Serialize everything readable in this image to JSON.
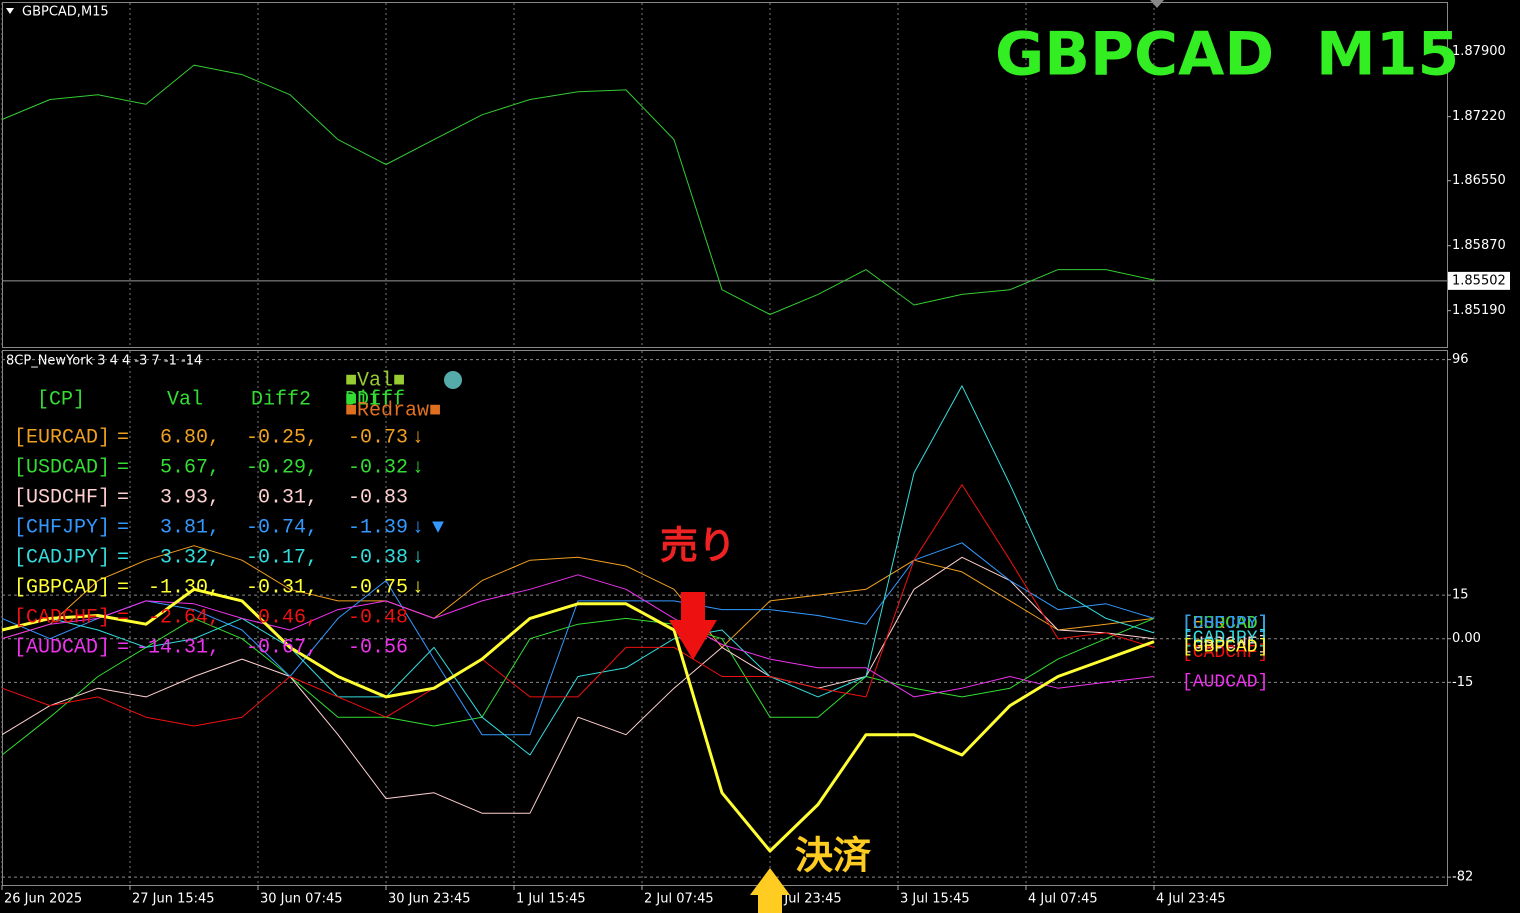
{
  "chart_data": [
    {
      "type": "line",
      "title": "GBPCAD,M15",
      "headline": "GBPCAD  M15",
      "x": [
        0,
        24,
        48,
        72,
        96,
        120,
        144,
        168,
        192,
        216,
        240,
        264,
        288,
        312,
        336,
        360,
        384,
        408,
        432,
        456,
        480,
        504,
        528,
        552,
        576
      ],
      "series": [
        {
          "name": "GBPCAD",
          "color": "#33cc33",
          "values": [
            1.8719,
            1.874,
            1.8745,
            1.8735,
            1.8776,
            1.8766,
            1.8745,
            1.8698,
            1.8672,
            1.8698,
            1.8724,
            1.874,
            1.8748,
            1.875,
            1.8698,
            1.8541,
            1.8515,
            1.8536,
            1.8562,
            1.8525,
            1.8536,
            1.8541,
            1.8562,
            1.8562,
            1.8551
          ]
        }
      ],
      "xlim": [
        0,
        722.5
      ],
      "ylim": [
        1.8481,
        1.8842
      ],
      "yticks": [
        {
          "value": 1.879,
          "label": "1.87900"
        },
        {
          "value": 1.8722,
          "label": "1.87220"
        },
        {
          "value": 1.8655,
          "label": "1.86550"
        },
        {
          "value": 1.8587,
          "label": "1.85870"
        },
        {
          "value": 1.8519,
          "label": "1.85190"
        }
      ],
      "current_price": {
        "value": 1.85502,
        "label": "1.85502"
      }
    },
    {
      "type": "line",
      "title": "8CP_NewYork 3 4 4 -3 7 -1 -14",
      "x": [
        0,
        24,
        48,
        72,
        96,
        120,
        144,
        168,
        192,
        216,
        240,
        264,
        288,
        312,
        336,
        360,
        384,
        408,
        432,
        456,
        480,
        504,
        528,
        552,
        576
      ],
      "series": [
        {
          "name": "[EURCAD]",
          "color": "#f0a020",
          "values": [
            0,
            5,
            20,
            27,
            32,
            27,
            17,
            13,
            13,
            7,
            20,
            27,
            28,
            25,
            17,
            -3,
            13,
            15,
            17,
            27,
            23,
            13,
            3,
            5,
            7
          ]
        },
        {
          "name": "[USDCAD]",
          "color": "#33dd33",
          "values": [
            -40,
            -27,
            -13,
            -3,
            7,
            0,
            -13,
            -27,
            -27,
            -30,
            -27,
            0,
            5,
            7,
            5,
            0,
            -27,
            -27,
            -13,
            -17,
            -20,
            -17,
            -7,
            0,
            7
          ]
        },
        {
          "name": "[USDCHF]",
          "color": "#ffd0d0",
          "values": [
            -33,
            -23,
            -17,
            -20,
            -13,
            -7,
            -13,
            -33,
            -55,
            -53,
            -60,
            -60,
            -27,
            -33,
            -17,
            -3,
            -13,
            -17,
            -13,
            17,
            28,
            20,
            3,
            2,
            0
          ]
        },
        {
          "name": "[CHFJPY]",
          "color": "#3399ff",
          "values": [
            7,
            0,
            7,
            13,
            10,
            3,
            -13,
            7,
            20,
            -7,
            -33,
            -33,
            13,
            13,
            13,
            10,
            10,
            8,
            5,
            27,
            33,
            20,
            10,
            12,
            7
          ]
        },
        {
          "name": "[CADJPY]",
          "color": "#33dddd",
          "values": [
            3,
            7,
            3,
            -3,
            0,
            7,
            -3,
            -20,
            -20,
            -3,
            -27,
            -40,
            -13,
            -10,
            0,
            3,
            -13,
            -20,
            -13,
            57,
            87,
            53,
            17,
            7,
            2
          ]
        },
        {
          "name": "[GBPCAD]",
          "color": "#ffff33",
          "highlight": true,
          "values": [
            3,
            7,
            8,
            5,
            17,
            13,
            -3,
            -13,
            -20,
            -17,
            -7,
            7,
            12,
            12,
            3,
            -53,
            -73,
            -57,
            -33,
            -33,
            -40,
            -23,
            -13,
            -7,
            -1
          ]
        },
        {
          "name": "[CADCHF]",
          "color": "#ee1111",
          "values": [
            -17,
            -23,
            -20,
            -27,
            -30,
            -27,
            -13,
            -20,
            -27,
            -17,
            -7,
            -20,
            -20,
            -3,
            -3,
            -13,
            -13,
            -17,
            -20,
            27,
            53,
            27,
            0,
            2,
            -3
          ]
        },
        {
          "name": "[AUDCAD]",
          "color": "#ee33ee",
          "values": [
            0,
            5,
            7,
            13,
            12,
            7,
            3,
            10,
            13,
            7,
            13,
            17,
            22,
            17,
            7,
            -2,
            -7,
            -10,
            -10,
            -20,
            -17,
            -13,
            -17,
            -15,
            -13
          ]
        }
      ],
      "xlim": [
        0,
        722.5
      ],
      "ylim": [
        -84.7,
        99.3
      ],
      "yticks": [
        96,
        15,
        {
          "value": 0,
          "label": "0.00"
        },
        -15,
        -82
      ],
      "xticks": [
        {
          "value": 0,
          "label": "26 Jun 2025"
        },
        {
          "value": 64,
          "label": "27 Jun 15:45"
        },
        {
          "value": 128,
          "label": "30 Jun 07:45"
        },
        {
          "value": 192,
          "label": "30 Jun 23:45"
        },
        {
          "value": 256,
          "label": "1 Jul 15:45"
        },
        {
          "value": 320,
          "label": "2 Jul 07:45"
        },
        {
          "value": 384,
          "label": "2 Jul 23:45"
        },
        {
          "value": 448,
          "label": "3 Jul 15:45"
        },
        {
          "value": 512,
          "label": "4 Jul 07:45"
        },
        {
          "value": 576,
          "label": "4 Jul 23:45"
        }
      ],
      "table": {
        "header": [
          "[CP]",
          "Val",
          "Diff2",
          "Diff"
        ],
        "legend": [
          "■Val■",
          "■Diff",
          "■Redraw■"
        ],
        "rows": [
          [
            "[EURCAD]",
            "=",
            "6.80,",
            "-0.25,",
            "-0.73",
            "↓"
          ],
          [
            "[USDCAD]",
            "=",
            "5.67,",
            "-0.29,",
            "-0.32",
            "↓"
          ],
          [
            "[USDCHF]",
            "=",
            "3.93,",
            "0.31,",
            "-0.83"
          ],
          [
            "[CHFJPY]",
            "=",
            "3.81,",
            "-0.74,",
            "-1.39",
            "↓",
            "▼"
          ],
          [
            "[CADJPY]",
            "=",
            "3.32,",
            "-0.17,",
            "-0.38",
            "↓"
          ],
          [
            "[GBPCAD]",
            "=",
            "-1.30,",
            "-0.31,",
            "-0.75",
            "↓"
          ],
          [
            "[CADCHF]",
            "=",
            "-2.64,",
            "0.46,",
            "-0.48"
          ],
          [
            "[AUDCAD]",
            "=",
            "-14.31,",
            "-0.67,",
            "-0.56"
          ]
        ]
      },
      "annotations": [
        "売り",
        "決済"
      ]
    }
  ]
}
